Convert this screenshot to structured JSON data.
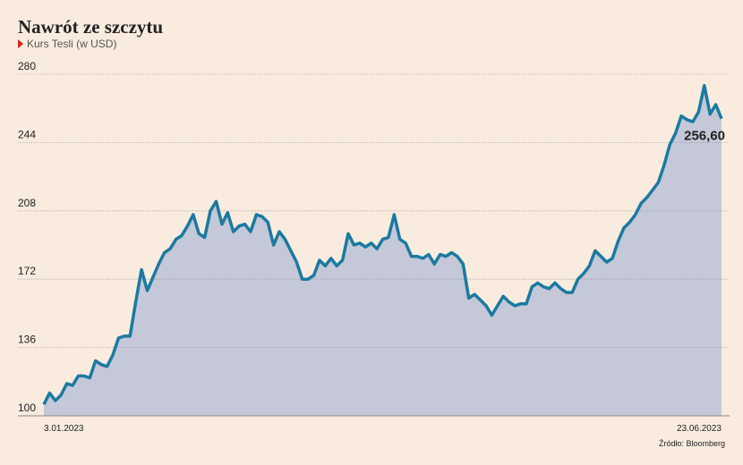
{
  "chart_data": {
    "type": "area",
    "title": "Nawrót ze szczytu",
    "subtitle": "Kurs Tesli (w USD)",
    "source": "Źródło: Bloomberg",
    "color": "#1b7aa0",
    "fill": "#c4c8d8",
    "categories": [
      "3.01.2023",
      null,
      null,
      null,
      null,
      null,
      null,
      null,
      null,
      null,
      null,
      null,
      null,
      null,
      null,
      null,
      null,
      null,
      null,
      null,
      null,
      null,
      null,
      null,
      null,
      null,
      null,
      null,
      null,
      null,
      null,
      null,
      null,
      null,
      null,
      null,
      null,
      null,
      null,
      null,
      null,
      null,
      null,
      null,
      null,
      null,
      null,
      null,
      null,
      null,
      null,
      null,
      null,
      null,
      null,
      null,
      null,
      null,
      null,
      null,
      null,
      null,
      null,
      null,
      null,
      null,
      null,
      null,
      null,
      null,
      null,
      null,
      null,
      null,
      null,
      null,
      null,
      null,
      null,
      null,
      null,
      null,
      null,
      null,
      null,
      null,
      null,
      null,
      null,
      null,
      null,
      null,
      null,
      null,
      null,
      null,
      null,
      null,
      null,
      null,
      null,
      null,
      null,
      null,
      null,
      null,
      null,
      null,
      null,
      null,
      null,
      null,
      null,
      null,
      null,
      null,
      null,
      null,
      "23.06.2023"
    ],
    "values": [
      106,
      112,
      108,
      111,
      117,
      116,
      121,
      121,
      120,
      129,
      127,
      126,
      132,
      141,
      142,
      142,
      160,
      177,
      166,
      173,
      180,
      186,
      188,
      193,
      195,
      200,
      206,
      196,
      194,
      208,
      213,
      201,
      207,
      197,
      200,
      201,
      197,
      206,
      205,
      202,
      190,
      197,
      193,
      187,
      181,
      172,
      172,
      174,
      182,
      179,
      183,
      179,
      182,
      196,
      190,
      191,
      189,
      191,
      188,
      193,
      194,
      206,
      193,
      191,
      184,
      184,
      183,
      185,
      180,
      185,
      184,
      186,
      184,
      180,
      162,
      164,
      161,
      158,
      153,
      158,
      163,
      160,
      158,
      159,
      159,
      168,
      170,
      168,
      167,
      170,
      167,
      165,
      165,
      172,
      175,
      179,
      187,
      184,
      181,
      183,
      192,
      199,
      202,
      206,
      212,
      215,
      219,
      223,
      232,
      243,
      249,
      258,
      256,
      255,
      260,
      274,
      259,
      264,
      256.6
    ],
    "value_labels": [
      null,
      null,
      null,
      null,
      null,
      null,
      null,
      null,
      null,
      null,
      null,
      null,
      null,
      null,
      null,
      null,
      null,
      null,
      null,
      null,
      null,
      null,
      null,
      null,
      null,
      null,
      null,
      null,
      null,
      null,
      null,
      null,
      null,
      null,
      null,
      null,
      null,
      null,
      null,
      null,
      null,
      null,
      null,
      null,
      null,
      null,
      null,
      null,
      null,
      null,
      null,
      null,
      null,
      null,
      null,
      null,
      null,
      null,
      null,
      null,
      null,
      null,
      null,
      null,
      null,
      null,
      null,
      null,
      null,
      null,
      null,
      null,
      null,
      null,
      null,
      null,
      null,
      null,
      null,
      null,
      null,
      null,
      null,
      null,
      null,
      null,
      null,
      null,
      null,
      null,
      null,
      null,
      null,
      null,
      null,
      null,
      null,
      null,
      null,
      null,
      null,
      null,
      null,
      null,
      null,
      null,
      null,
      null,
      null,
      null,
      null,
      null,
      null,
      null,
      null,
      null,
      null,
      null,
      "256,60"
    ],
    "ylim": [
      100,
      280
    ],
    "yticks": [
      100,
      136,
      172,
      208,
      244,
      280
    ],
    "grid": true
  }
}
